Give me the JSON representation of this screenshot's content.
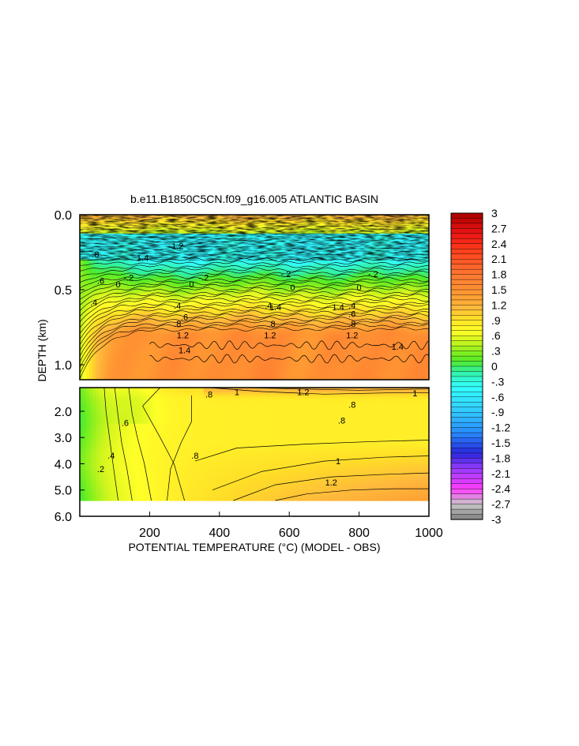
{
  "chart_data": {
    "type": "heatmap",
    "title": "b.e11.B1850C5CN.f09_g16.005 ATLANTIC BASIN",
    "xlabel": "POTENTIAL TEMPERATURE (°C) (MODEL - OBS)",
    "ylabel": "DEPTH (km)",
    "x_range": [
      0,
      1000
    ],
    "x_ticks": [
      "200",
      "400",
      "600",
      "800",
      "1000"
    ],
    "x_tick_values": [
      200,
      400,
      600,
      800,
      1000
    ],
    "upper_panel": {
      "depth_range_km": [
        0.0,
        1.1
      ],
      "y_ticks": [
        "0.0",
        "0.5",
        "1.0"
      ],
      "y_tick_values": [
        0.0,
        0.5,
        1.0
      ]
    },
    "lower_panel": {
      "depth_range_km": [
        1.1,
        6.0
      ],
      "y_ticks": [
        "2.0",
        "3.0",
        "4.0",
        "5.0",
        "6.0"
      ],
      "y_tick_values": [
        2.0,
        3.0,
        4.0,
        5.0,
        6.0
      ],
      "data_bottom_km": 5.4
    },
    "colorbar": {
      "range": [
        -3,
        3
      ],
      "labels": [
        "3",
        "2.7",
        "2.4",
        "2.1",
        "1.8",
        "1.5",
        "1.2",
        ".9",
        ".6",
        ".3",
        "0",
        "-.3",
        "-.6",
        "-.9",
        "-1.2",
        "-1.5",
        "-1.8",
        "-2.1",
        "-2.4",
        "-2.7",
        "-3"
      ],
      "colors": [
        "#888888",
        "#aaaaaa",
        "#c8c8c8",
        "#ff33ff",
        "#9933ff",
        "#2222dd",
        "#2a8cff",
        "#33ccff",
        "#33ffff",
        "#33ee88",
        "#66ee22",
        "#ccf022",
        "#ffff22",
        "#ffdd22",
        "#ffb23c",
        "#ff9933",
        "#ff7733",
        "#ff4422",
        "#ee1111",
        "#cc1111",
        "#aa0000"
      ]
    },
    "contour_labels": {
      "upper": [
        {
          "text": "1.2",
          "x": 280,
          "z": 0.81
        },
        {
          "text": "1.4",
          "x": 180,
          "z": 0.74
        },
        {
          "text": "1.4",
          "x": 560,
          "z": 0.44
        },
        {
          "text": "1.4",
          "x": 740,
          "z": 0.44
        },
        {
          "text": "1.4",
          "x": 910,
          "z": 0.2
        },
        {
          "text": ".8",
          "x": 45,
          "z": 0.76
        },
        {
          "text": ".6",
          "x": 60,
          "z": 0.6
        },
        {
          "text": ".4",
          "x": 40,
          "z": 0.47
        },
        {
          "text": "0",
          "x": 110,
          "z": 0.58
        },
        {
          "text": "0",
          "x": 320,
          "z": 0.58
        },
        {
          "text": "0",
          "x": 610,
          "z": 0.56
        },
        {
          "text": "0",
          "x": 800,
          "z": 0.56
        },
        {
          "text": ".4",
          "x": 280,
          "z": 0.45
        },
        {
          "text": ".6",
          "x": 300,
          "z": 0.38
        },
        {
          "text": ".8",
          "x": 280,
          "z": 0.34
        },
        {
          "text": "1.2",
          "x": 295,
          "z": 0.27
        },
        {
          "text": ".4",
          "x": 540,
          "z": 0.45
        },
        {
          "text": ".8",
          "x": 550,
          "z": 0.34
        },
        {
          "text": "1.2",
          "x": 545,
          "z": 0.27
        },
        {
          "text": ".4",
          "x": 780,
          "z": 0.45
        },
        {
          "text": ".6",
          "x": 780,
          "z": 0.4
        },
        {
          "text": ".8",
          "x": 780,
          "z": 0.34
        },
        {
          "text": "1.2",
          "x": 780,
          "z": 0.27
        },
        {
          "text": "1.4",
          "x": 300,
          "z": 0.18
        },
        {
          "text": "-.2",
          "x": 140,
          "z": 0.62
        },
        {
          "text": "-.2",
          "x": 355,
          "z": 0.62
        },
        {
          "text": "-.2",
          "x": 590,
          "z": 0.64
        },
        {
          "text": "-.2",
          "x": 840,
          "z": 0.64
        }
      ],
      "lower": [
        {
          "text": ".8",
          "x": 370,
          "z": 0.94
        },
        {
          "text": "1",
          "x": 450,
          "z": 0.96
        },
        {
          "text": "1.2",
          "x": 640,
          "z": 0.96
        },
        {
          "text": "1",
          "x": 960,
          "z": 0.95
        },
        {
          "text": ".8",
          "x": 780,
          "z": 0.85
        },
        {
          "text": ".8",
          "x": 750,
          "z": 0.71
        },
        {
          "text": ".6",
          "x": 130,
          "z": 0.69
        },
        {
          "text": ".8",
          "x": 330,
          "z": 0.4
        },
        {
          "text": "1",
          "x": 740,
          "z": 0.35
        },
        {
          "text": "1.2",
          "x": 720,
          "z": 0.16
        },
        {
          "text": ".4",
          "x": 90,
          "z": 0.4
        },
        {
          "text": ".2",
          "x": 60,
          "z": 0.28
        }
      ]
    }
  }
}
